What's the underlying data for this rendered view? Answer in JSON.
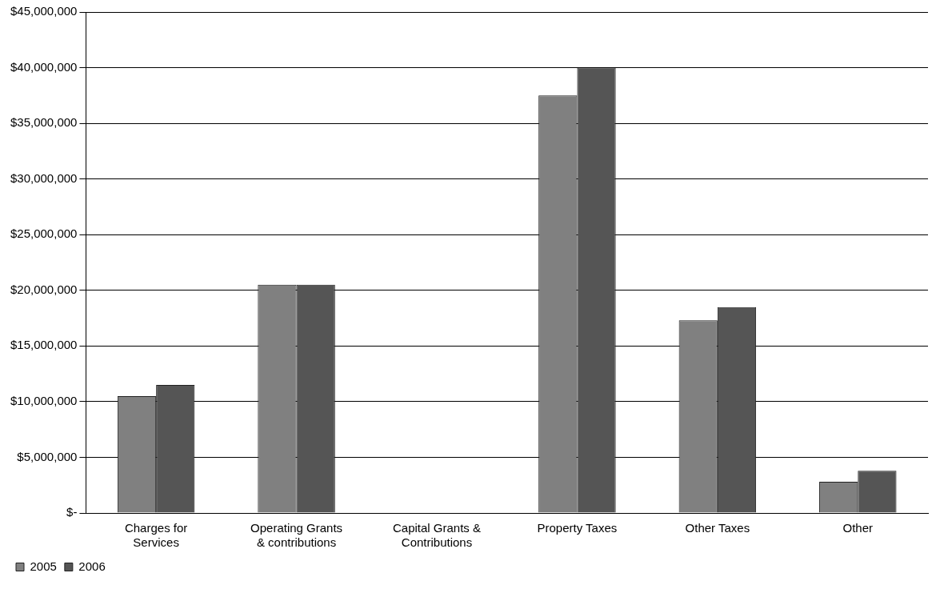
{
  "chart_data": {
    "type": "bar",
    "categories": [
      "Charges for Services",
      "Operating Grants & contributions",
      "Capital Grants & Contributions",
      "Property Taxes",
      "Other Taxes",
      "Other"
    ],
    "series": [
      {
        "name": "2005",
        "color": "#808080",
        "values": [
          10500000,
          20500000,
          0,
          37500000,
          17300000,
          2800000
        ]
      },
      {
        "name": "2006",
        "color": "#555555",
        "values": [
          11500000,
          20500000,
          0,
          40000000,
          18500000,
          3800000
        ]
      }
    ],
    "ylim": [
      0,
      45000000
    ],
    "yticks": [
      {
        "value": 0,
        "label": "$-"
      },
      {
        "value": 5000000,
        "label": "$5,000,000"
      },
      {
        "value": 10000000,
        "label": "$10,000,000"
      },
      {
        "value": 15000000,
        "label": "$15,000,000"
      },
      {
        "value": 20000000,
        "label": "$20,000,000"
      },
      {
        "value": 25000000,
        "label": "$25,000,000"
      },
      {
        "value": 30000000,
        "label": "$30,000,000"
      },
      {
        "value": 35000000,
        "label": "$35,000,000"
      },
      {
        "value": 40000000,
        "label": "$40,000,000"
      },
      {
        "value": 45000000,
        "label": "$45,000,000"
      }
    ],
    "grid": "y",
    "legend": "bottom left"
  }
}
